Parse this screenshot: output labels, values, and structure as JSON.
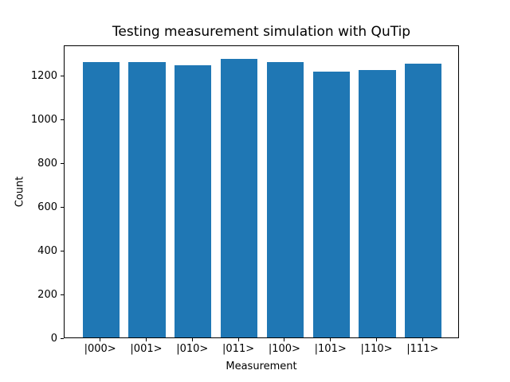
{
  "window": {
    "background": "#ffffff"
  },
  "chart_data": {
    "type": "bar",
    "title": "Testing measurement simulation with QuTip",
    "xlabel": "Measurement",
    "ylabel": "Count",
    "categories": [
      "|000>",
      "|001>",
      "|010>",
      "|011>",
      "|100>",
      "|101>",
      "|110>",
      "|111>"
    ],
    "values": [
      1260,
      1260,
      1246,
      1276,
      1260,
      1217,
      1224,
      1254
    ],
    "ylim": [
      0,
      1340
    ],
    "yticks": [
      0,
      200,
      400,
      600,
      800,
      1000,
      1200
    ],
    "bar_color": "#1f77b4",
    "axis_color": "#000000",
    "text_color": "#000000",
    "grid": false,
    "legend_position": "none"
  }
}
